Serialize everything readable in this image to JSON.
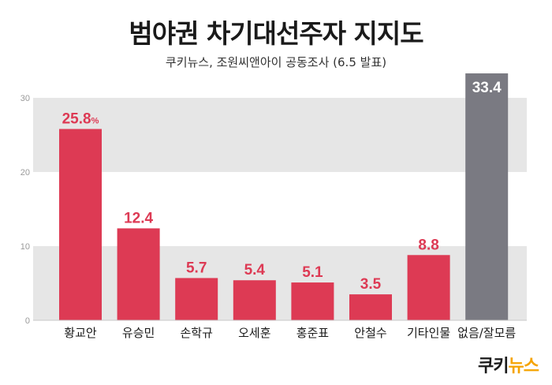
{
  "header": {
    "title": "범야권 차기대선주자 지지도",
    "subtitle": "쿠키뉴스, 조원씨앤아이 공동조사 (6.5 발표)"
  },
  "logo": {
    "part1": "쿠키",
    "part2": "뉴스"
  },
  "colors": {
    "bar": "#dd3a54",
    "highlight_bar": "#7a7a82",
    "band": "#e6e6e6"
  },
  "chart_data": {
    "type": "bar",
    "categories": [
      "황교안",
      "유승민",
      "손학규",
      "오세훈",
      "홍준표",
      "안철수",
      "기타인물",
      "없음/잘모름"
    ],
    "values": [
      25.8,
      12.4,
      5.7,
      5.4,
      5.1,
      3.5,
      8.8,
      33.4
    ],
    "value_labels": [
      "25.8",
      "12.4",
      "5.7",
      "5.4",
      "5.1",
      "3.5",
      "8.8",
      "33.4"
    ],
    "first_label_unit": "%",
    "yticks": [
      0,
      10,
      20,
      30
    ],
    "ylim": [
      0,
      30
    ],
    "grid": "alternating bands",
    "highlight_index": 7
  }
}
